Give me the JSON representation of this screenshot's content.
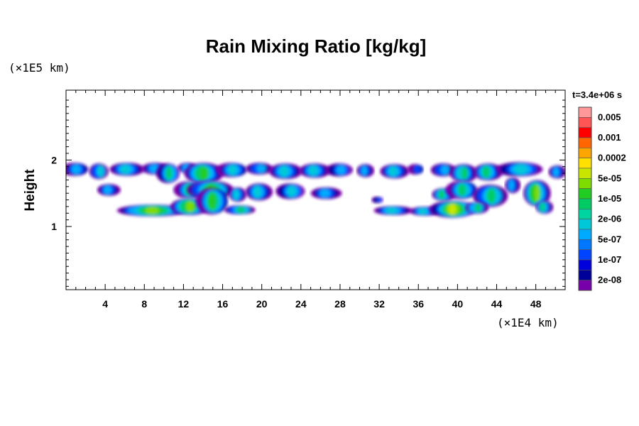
{
  "chart_data": {
    "type": "heatmap",
    "title": "Rain Mixing Ratio [kg/kg]",
    "xlabel": "",
    "ylabel": "Height",
    "x_scale_note": "(×1E4 km)",
    "y_scale_note": "(×1E5 km)",
    "time_label": "t=3.4e+06 s",
    "xlim": [
      0,
      51
    ],
    "ylim": [
      0.05,
      3.05
    ],
    "x_ticks": [
      4,
      8,
      12,
      16,
      20,
      24,
      28,
      32,
      36,
      40,
      44,
      48
    ],
    "y_ticks": [
      1,
      2
    ],
    "grid": false,
    "colorbar": {
      "position": "right",
      "levels": [
        {
          "label": "0.005",
          "color": "#ff9999"
        },
        {
          "label": "",
          "color": "#ff5555"
        },
        {
          "label": "0.001",
          "color": "#ff0000"
        },
        {
          "label": "",
          "color": "#ff6600"
        },
        {
          "label": "0.0002",
          "color": "#ffa500"
        },
        {
          "label": "",
          "color": "#ffe000"
        },
        {
          "label": "5e-05",
          "color": "#c8e600"
        },
        {
          "label": "",
          "color": "#7fdc00"
        },
        {
          "label": "1e-05",
          "color": "#22cc22"
        },
        {
          "label": "",
          "color": "#00cc66"
        },
        {
          "label": "2e-06",
          "color": "#00d4a0"
        },
        {
          "label": "",
          "color": "#00c8d8"
        },
        {
          "label": "5e-07",
          "color": "#00aaff"
        },
        {
          "label": "",
          "color": "#0077ff"
        },
        {
          "label": "1e-07",
          "color": "#0044ff"
        },
        {
          "label": "",
          "color": "#0000dd"
        },
        {
          "label": "2e-08",
          "color": "#000099"
        },
        {
          "label": "",
          "color": "#7700aa"
        }
      ]
    }
  }
}
